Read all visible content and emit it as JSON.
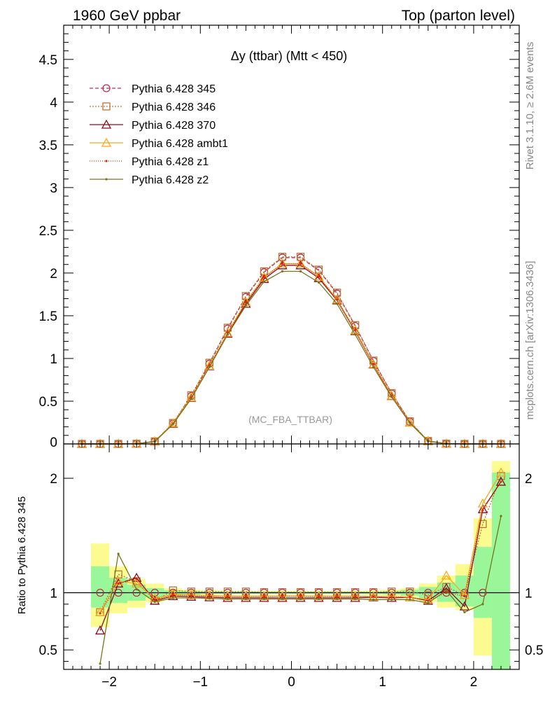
{
  "header": {
    "left": "1960 GeV ppbar",
    "right": "Top (parton level)"
  },
  "side_labels": {
    "rivet": "Rivet 3.1.10, ≥ 2.6M events",
    "mcplots": "mcplots.cern.ch [arXiv:1306.3436]"
  },
  "chart_data": {
    "type": "line",
    "title": "Δy (ttbar) (Mtt < 450)",
    "watermark": "(MC_FBA_TTBAR)",
    "xlim": [
      -2.5,
      2.5
    ],
    "ylim": [
      0,
      4.9
    ],
    "ratio_ylim": [
      0.33,
      2.3
    ],
    "ratio_ylabel": "Ratio to Pythia 6.428 345",
    "xticks": [
      -2,
      -1,
      0,
      1,
      2
    ],
    "xtick_labels": [
      "−2",
      "−1",
      "0",
      "1",
      "2"
    ],
    "yticks": [
      0.5,
      1,
      1.5,
      2,
      2.5,
      3,
      3.5,
      4,
      4.5
    ],
    "ytick_labels": [
      "0.5",
      "1",
      "1.5",
      "2",
      "2.5",
      "3",
      "3.5",
      "4",
      "4.5"
    ],
    "ratio_yticks": [
      0.5,
      1,
      2
    ],
    "ratio_ytick_labels": [
      "0.5",
      "1",
      "2"
    ],
    "zero_label": "0",
    "x": [
      -2.3,
      -2.1,
      -1.9,
      -1.7,
      -1.5,
      -1.3,
      -1.1,
      -0.9,
      -0.7,
      -0.5,
      -0.3,
      -0.1,
      0.1,
      0.3,
      0.5,
      0.7,
      0.9,
      1.1,
      1.3,
      1.5,
      1.7,
      1.9,
      2.1,
      2.3
    ],
    "series": [
      {
        "name": "Pythia 6.428 345",
        "color": "#c02b4f",
        "dash": "5,3",
        "marker": "circle",
        "values": [
          0,
          0,
          0,
          0.002,
          0.03,
          0.24,
          0.56,
          0.94,
          1.35,
          1.72,
          2.01,
          2.18,
          2.18,
          2.03,
          1.76,
          1.38,
          0.97,
          0.59,
          0.26,
          0.035,
          0.003,
          0,
          0,
          0
        ]
      },
      {
        "name": "Pythia 6.428 346",
        "color": "#b57839",
        "dash": "2,2",
        "marker": "square",
        "values": [
          0,
          0,
          0,
          0.002,
          0.03,
          0.245,
          0.57,
          0.95,
          1.36,
          1.73,
          2.02,
          2.19,
          2.19,
          2.04,
          1.77,
          1.39,
          0.975,
          0.595,
          0.265,
          0.034,
          0.003,
          0,
          0,
          0
        ]
      },
      {
        "name": "Pythia 6.428 370",
        "color": "#8c0a1c",
        "dash": "",
        "marker": "triangle",
        "values": [
          0,
          0,
          0,
          0.002,
          0.028,
          0.235,
          0.54,
          0.91,
          1.29,
          1.64,
          1.93,
          2.09,
          2.09,
          1.94,
          1.68,
          1.32,
          0.93,
          0.56,
          0.25,
          0.032,
          0.003,
          0,
          0,
          0
        ]
      },
      {
        "name": "Pythia 6.428 ambt1",
        "color": "#f5a91d",
        "dash": "",
        "marker": "triangle",
        "values": [
          0,
          0,
          0,
          0.002,
          0.028,
          0.24,
          0.545,
          0.915,
          1.3,
          1.66,
          1.95,
          2.11,
          2.11,
          1.96,
          1.69,
          1.33,
          0.935,
          0.565,
          0.25,
          0.033,
          0.003,
          0,
          0,
          0
        ]
      },
      {
        "name": "Pythia 6.428 z1",
        "color": "#e8260d",
        "dash": "1,2",
        "marker": "dot",
        "values": [
          0,
          0,
          0,
          0.002,
          0.028,
          0.24,
          0.545,
          0.92,
          1.3,
          1.66,
          1.95,
          2.11,
          2.11,
          1.96,
          1.69,
          1.33,
          0.935,
          0.565,
          0.25,
          0.033,
          0.003,
          0,
          0,
          0
        ]
      },
      {
        "name": "Pythia 6.428 z2",
        "color": "#76751a",
        "dash": "",
        "marker": "dot",
        "values": [
          0,
          0,
          0,
          0.002,
          0.028,
          0.23,
          0.53,
          0.9,
          1.28,
          1.62,
          1.9,
          2.02,
          2.02,
          1.89,
          1.64,
          1.28,
          0.9,
          0.55,
          0.245,
          0.032,
          0.003,
          0,
          0,
          0
        ]
      }
    ],
    "ratio_series": [
      {
        "values": [
          null,
          1,
          1,
          1,
          1,
          1,
          1,
          1,
          1,
          1,
          1,
          1,
          1,
          1,
          1,
          1,
          1,
          1,
          1,
          1,
          1,
          1,
          1,
          null
        ]
      },
      {
        "values": [
          null,
          0.83,
          1.16,
          1.1,
          0.93,
          1.02,
          1.01,
          1.01,
          1.01,
          1.01,
          1.005,
          1.005,
          1.005,
          1.005,
          1.005,
          1.005,
          1.005,
          1.01,
          1.01,
          0.98,
          1.05,
          0.98,
          1.6,
          2.02
        ]
      },
      {
        "values": [
          null,
          0.67,
          1.08,
          1.13,
          0.93,
          0.97,
          0.965,
          0.96,
          0.955,
          0.955,
          0.955,
          0.955,
          0.955,
          0.955,
          0.955,
          0.955,
          0.96,
          0.955,
          0.96,
          0.93,
          1.04,
          0.88,
          1.73,
          1.97
        ]
      },
      {
        "values": [
          null,
          0.83,
          1.1,
          1.08,
          0.95,
          0.985,
          0.98,
          0.975,
          0.97,
          0.97,
          0.97,
          0.97,
          0.97,
          0.97,
          0.97,
          0.97,
          0.965,
          0.97,
          0.96,
          0.94,
          1.15,
          0.98,
          1.78,
          2.05
        ]
      },
      {
        "values": [
          null,
          0.82,
          1.08,
          1.12,
          0.94,
          0.98,
          0.975,
          0.97,
          0.965,
          0.965,
          0.965,
          0.97,
          0.97,
          0.965,
          0.965,
          0.965,
          0.965,
          0.96,
          0.96,
          0.93,
          1.0,
          0.97,
          1.72,
          1.97
        ]
      },
      {
        "values": [
          null,
          0.38,
          1.34,
          1.03,
          0.92,
          0.955,
          0.955,
          0.95,
          0.945,
          0.945,
          0.945,
          0.945,
          0.945,
          0.945,
          0.945,
          0.945,
          0.94,
          0.94,
          0.94,
          0.91,
          1.02,
          0.83,
          0.9,
          1.67
        ]
      }
    ],
    "ratio_bands": {
      "inner": [
        null,
        [
          0.87,
          1.23
        ],
        [
          0.91,
          1.13
        ],
        [
          0.93,
          1.07
        ],
        [
          0.96,
          1.04
        ],
        [
          0.98,
          1.02
        ],
        [
          0.985,
          1.015
        ],
        [
          0.99,
          1.01
        ],
        [
          0.99,
          1.01
        ],
        [
          0.99,
          1.01
        ],
        [
          0.99,
          1.01
        ],
        [
          0.99,
          1.01
        ],
        [
          0.99,
          1.01
        ],
        [
          0.99,
          1.01
        ],
        [
          0.99,
          1.01
        ],
        [
          0.99,
          1.01
        ],
        [
          0.99,
          1.01
        ],
        [
          0.985,
          1.015
        ],
        [
          0.975,
          1.025
        ],
        [
          0.95,
          1.05
        ],
        [
          0.92,
          1.09
        ],
        [
          0.88,
          1.15
        ],
        [
          0.78,
          1.4
        ],
        [
          0.33,
          2.05
        ]
      ],
      "outer": [
        null,
        [
          0.7,
          1.43
        ],
        [
          0.82,
          1.23
        ],
        [
          0.87,
          1.12
        ],
        [
          0.92,
          1.08
        ],
        [
          0.96,
          1.04
        ],
        [
          0.975,
          1.025
        ],
        [
          0.98,
          1.02
        ],
        [
          0.985,
          1.015
        ],
        [
          0.985,
          1.015
        ],
        [
          0.985,
          1.015
        ],
        [
          0.985,
          1.015
        ],
        [
          0.985,
          1.015
        ],
        [
          0.985,
          1.015
        ],
        [
          0.985,
          1.015
        ],
        [
          0.985,
          1.015
        ],
        [
          0.98,
          1.02
        ],
        [
          0.975,
          1.025
        ],
        [
          0.96,
          1.04
        ],
        [
          0.92,
          1.08
        ],
        [
          0.87,
          1.15
        ],
        [
          0.85,
          1.25
        ],
        [
          0.45,
          1.65
        ],
        [
          0.33,
          2.15
        ]
      ]
    },
    "band_colors": {
      "inner": "#99f799",
      "outer": "#fbfb8f"
    },
    "legend_placement": "top-left"
  }
}
